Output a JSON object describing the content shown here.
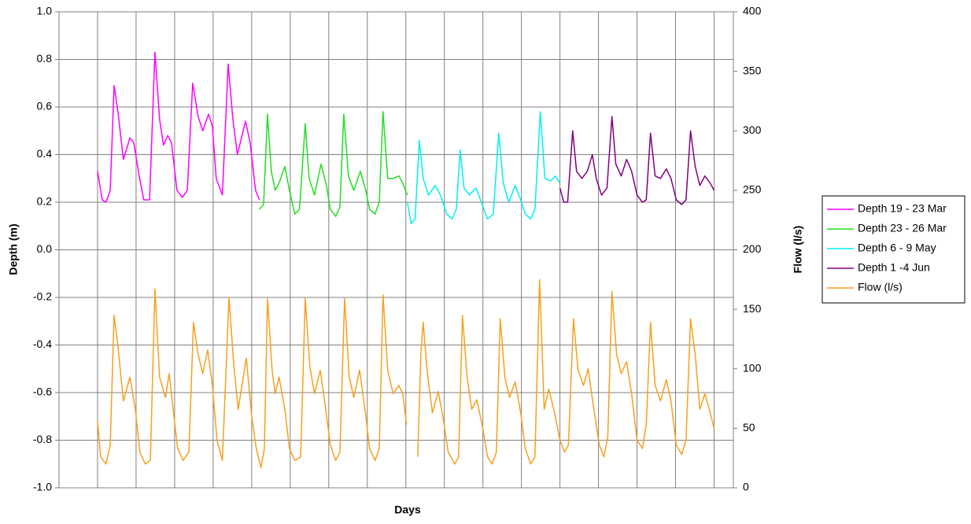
{
  "chart_data": {
    "type": "line",
    "x_label": "Days",
    "y_label": "Depth (m)",
    "y2_label": "Flow (l/s)",
    "xlim": [
      -1,
      16.5
    ],
    "xticks": [
      0,
      1,
      2,
      3,
      4,
      5,
      6,
      7,
      8,
      9,
      10,
      11,
      12,
      13,
      14,
      15,
      16
    ],
    "ylim": [
      -1,
      1
    ],
    "yticks": [
      {
        "value": -1,
        "label": "-1.0"
      },
      -0.8,
      -0.6,
      -0.4,
      -0.2,
      {
        "value": 0,
        "label": "0.0"
      },
      0.2,
      0.4,
      0.6,
      0.8,
      {
        "value": 1,
        "label": "1.0"
      }
    ],
    "y2lim": [
      0,
      400
    ],
    "y2ticks": [
      0,
      50,
      100,
      150,
      200,
      250,
      300,
      350,
      400
    ],
    "grid": true,
    "legend": "right",
    "series": [
      {
        "name": "Depth 19 - 23 Mar",
        "color": "#ff00ff",
        "x": [
          0,
          0.12,
          0.22,
          0.33,
          0.43,
          0.53,
          0.67,
          0.84,
          0.94,
          1.08,
          1.2,
          1.35,
          1.49,
          1.61,
          1.71,
          1.82,
          1.92,
          2.06,
          2.2,
          2.33,
          2.47,
          2.61,
          2.73,
          2.88,
          2.98,
          3.08,
          3.24,
          3.39,
          3.51,
          3.63,
          3.84,
          3.96,
          4.1,
          4.2
        ],
        "values": [
          0.33,
          0.21,
          0.2,
          0.25,
          0.69,
          0.58,
          0.38,
          0.47,
          0.45,
          0.31,
          0.21,
          0.21,
          0.83,
          0.55,
          0.44,
          0.48,
          0.45,
          0.25,
          0.22,
          0.25,
          0.7,
          0.56,
          0.5,
          0.57,
          0.52,
          0.3,
          0.23,
          0.78,
          0.55,
          0.4,
          0.54,
          0.45,
          0.25,
          0.21
        ]
      },
      {
        "name": "Depth 23 - 26 Mar",
        "color": "#22dd22",
        "x": [
          4.2,
          4.31,
          4.41,
          4.51,
          4.61,
          4.71,
          4.86,
          4.98,
          5.12,
          5.24,
          5.39,
          5.49,
          5.63,
          5.8,
          5.94,
          6.04,
          6.18,
          6.29,
          6.39,
          6.51,
          6.65,
          6.82,
          6.96,
          7.06,
          7.2,
          7.31,
          7.41,
          7.53,
          7.67,
          7.82,
          7.92,
          8.04
        ],
        "values": [
          0.17,
          0.19,
          0.57,
          0.33,
          0.25,
          0.28,
          0.35,
          0.25,
          0.15,
          0.17,
          0.53,
          0.3,
          0.23,
          0.36,
          0.27,
          0.17,
          0.14,
          0.18,
          0.57,
          0.31,
          0.25,
          0.33,
          0.25,
          0.17,
          0.15,
          0.2,
          0.58,
          0.3,
          0.3,
          0.31,
          0.28,
          0.23
        ]
      },
      {
        "name": "Depth 6 - 9 May",
        "color": "#00f0f0",
        "x": [
          8.04,
          8.14,
          8.24,
          8.35,
          8.45,
          8.59,
          8.76,
          8.9,
          9.06,
          9.2,
          9.31,
          9.41,
          9.51,
          9.65,
          9.82,
          9.96,
          10.12,
          10.27,
          10.41,
          10.53,
          10.67,
          10.84,
          10.98,
          11.1,
          11.24,
          11.35,
          11.49,
          11.61,
          11.76,
          11.88,
          12
        ],
        "values": [
          0.2,
          0.11,
          0.13,
          0.46,
          0.3,
          0.23,
          0.27,
          0.23,
          0.15,
          0.13,
          0.17,
          0.42,
          0.26,
          0.23,
          0.26,
          0.2,
          0.13,
          0.15,
          0.49,
          0.28,
          0.2,
          0.27,
          0.21,
          0.15,
          0.13,
          0.17,
          0.58,
          0.3,
          0.29,
          0.31,
          0.28
        ]
      },
      {
        "name": "Depth 1 -4 Jun",
        "color": "#800080",
        "x": [
          12,
          12.1,
          12.2,
          12.33,
          12.43,
          12.57,
          12.71,
          12.84,
          12.94,
          13.08,
          13.22,
          13.35,
          13.45,
          13.59,
          13.73,
          13.86,
          14,
          14.14,
          14.24,
          14.35,
          14.47,
          14.61,
          14.76,
          14.88,
          15.02,
          15.16,
          15.27,
          15.39,
          15.51,
          15.63,
          15.76,
          15.9,
          16
        ],
        "values": [
          0.26,
          0.2,
          0.2,
          0.5,
          0.33,
          0.3,
          0.33,
          0.4,
          0.3,
          0.23,
          0.26,
          0.56,
          0.36,
          0.31,
          0.38,
          0.33,
          0.23,
          0.2,
          0.21,
          0.49,
          0.31,
          0.3,
          0.34,
          0.3,
          0.21,
          0.19,
          0.21,
          0.5,
          0.35,
          0.27,
          0.31,
          0.28,
          0.25
        ]
      },
      {
        "name": "Flow (l/s)",
        "color": "#f5a020",
        "axis": "y2",
        "x": [
          0,
          0.08,
          0.22,
          0.33,
          0.43,
          0.53,
          0.67,
          0.84,
          0.98,
          1.1,
          1.24,
          1.37,
          1.49,
          1.61,
          1.76,
          1.86,
          1.96,
          2.08,
          2.22,
          2.37,
          2.49,
          2.61,
          2.73,
          2.86,
          2.98,
          3.1,
          3.24,
          3.41,
          3.53,
          3.65,
          3.86,
          4,
          4.12,
          4.24,
          4.33,
          4.41,
          4.53,
          4.61,
          4.71,
          4.86,
          4.98,
          5.12,
          5.27,
          5.39,
          5.51,
          5.63,
          5.78,
          5.92,
          6.04,
          6.18,
          6.29,
          6.41,
          6.53,
          6.65,
          6.8,
          6.94,
          7.06,
          7.2,
          7.31,
          7.41,
          7.53,
          7.67,
          7.82,
          7.92,
          8.02,
          8.16,
          8.31,
          8.39,
          8.45,
          8.55,
          8.69,
          8.84,
          8.96,
          9.1,
          9.27,
          9.37,
          9.47,
          9.59,
          9.71,
          9.84,
          9.98,
          10.12,
          10.24,
          10.35,
          10.45,
          10.57,
          10.69,
          10.84,
          10.98,
          11.1,
          11.24,
          11.35,
          11.47,
          11.59,
          11.71,
          11.86,
          12,
          12.12,
          12.22,
          12.35,
          12.47,
          12.61,
          12.73,
          12.88,
          13.02,
          13.14,
          13.24,
          13.35,
          13.47,
          13.59,
          13.73,
          13.86,
          14,
          14.14,
          14.24,
          14.35,
          14.47,
          14.61,
          14.76,
          14.88,
          15.02,
          15.16,
          15.27,
          15.39,
          15.51,
          15.63,
          15.76,
          15.9,
          16
        ],
        "values": [
          56,
          26,
          20,
          36,
          145,
          119,
          73,
          93,
          66,
          30,
          20,
          23,
          167,
          93,
          76,
          96,
          66,
          33,
          23,
          30,
          139,
          112,
          96,
          116,
          86,
          40,
          23,
          160,
          106,
          66,
          109,
          60,
          33,
          17,
          33,
          159,
          99,
          79,
          93,
          66,
          33,
          23,
          26,
          159,
          102,
          79,
          99,
          66,
          36,
          23,
          30,
          159,
          93,
          76,
          99,
          66,
          33,
          23,
          33,
          162,
          99,
          79,
          86,
          79,
          53,
          null,
          26,
          112,
          139,
          99,
          63,
          81,
          60,
          30,
          20,
          26,
          145,
          93,
          66,
          74,
          53,
          26,
          20,
          30,
          142,
          93,
          76,
          89,
          63,
          33,
          20,
          26,
          175,
          66,
          83,
          63,
          40,
          30,
          36,
          142,
          99,
          86,
          100,
          66,
          36,
          26,
          43,
          165,
          112,
          96,
          106,
          79,
          40,
          33,
          53,
          139,
          86,
          73,
          91,
          73,
          36,
          28,
          40,
          142,
          112,
          66,
          79,
          63,
          50
        ]
      }
    ]
  }
}
